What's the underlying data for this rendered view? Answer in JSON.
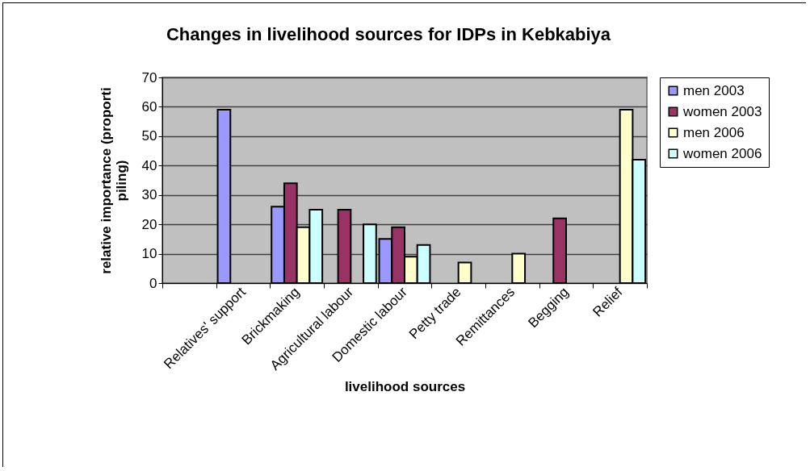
{
  "chart_data": {
    "type": "bar",
    "title": "Changes in livelihood sources for IDPs in Kebkabiya",
    "xlabel": "livelihood sources",
    "ylabel": "relative importance (proporti piling)",
    "categories": [
      null,
      "Relatives' support",
      "Brickmaking",
      "Agricultural labour",
      "Domestic labour",
      "Petty trade",
      "Remittances",
      "Begging",
      "Relief"
    ],
    "series": [
      {
        "name": "men 2003",
        "color": "#9999ff",
        "values": [
          null,
          59,
          26,
          null,
          15,
          null,
          null,
          null,
          null
        ]
      },
      {
        "name": "women 2003",
        "color": "#993366",
        "values": [
          null,
          null,
          34,
          25,
          19,
          null,
          null,
          22,
          null
        ]
      },
      {
        "name": "men 2006",
        "color": "#ffffcc",
        "values": [
          null,
          null,
          19,
          null,
          9,
          7,
          10,
          null,
          59
        ]
      },
      {
        "name": "women 2006",
        "color": "#ccffff",
        "values": [
          null,
          null,
          25,
          20,
          13,
          null,
          null,
          null,
          42
        ]
      }
    ],
    "ylim": [
      0,
      70
    ],
    "yticks": [
      0,
      10,
      20,
      30,
      40,
      50,
      60,
      70
    ],
    "grid": "y",
    "legend": "right"
  }
}
